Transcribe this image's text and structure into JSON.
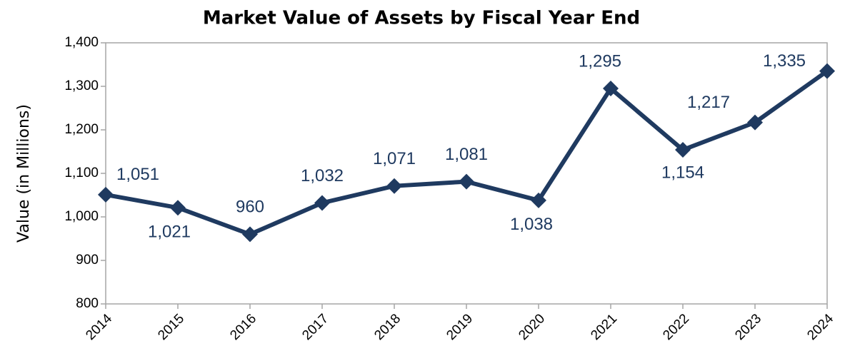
{
  "chart_data": {
    "type": "line",
    "title": "Market Value of Assets by Fiscal Year End",
    "y_label": "Value (in Millions)",
    "categories": [
      "2014",
      "2015",
      "2016",
      "2017",
      "2018",
      "2019",
      "2020",
      "2021",
      "2022",
      "2023",
      "2024"
    ],
    "series": [
      {
        "name": "Market Value",
        "color": "#1f3a60",
        "values": [
          1051,
          1021,
          960,
          1032,
          1071,
          1081,
          1038,
          1295,
          1154,
          1217,
          1335
        ],
        "value_labels": [
          "1,051",
          "1,021",
          "960",
          "1,032",
          "1,071",
          "1,081",
          "1,038",
          "1,295",
          "1,154",
          "1,217",
          "1,335"
        ]
      }
    ],
    "ylim": [
      800,
      1400
    ],
    "yticks": [
      800,
      900,
      {
        "value": 1000,
        "label": "1,000"
      },
      {
        "value": 1100,
        "label": "1,100"
      },
      {
        "value": 1200,
        "label": "1,200"
      },
      {
        "value": 1300,
        "label": "1,300"
      },
      {
        "value": 1400,
        "label": "1,400"
      }
    ],
    "grid": false
  }
}
